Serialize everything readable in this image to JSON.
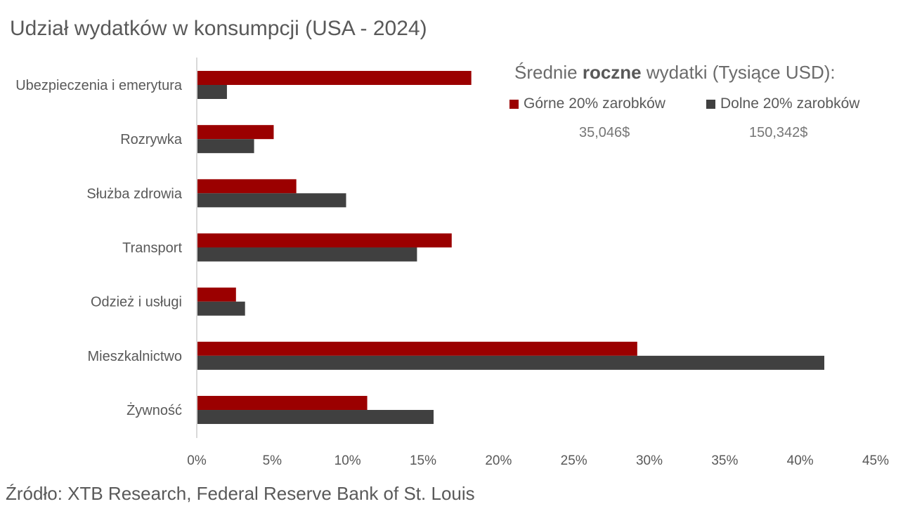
{
  "chart_data": {
    "type": "bar",
    "orientation": "horizontal",
    "title": "Udział wydatków w konsumpcji (USA - 2024)",
    "source": "Źródło: XTB Research, Federal Reserve Bank of St. Louis",
    "categories": [
      "Ubezpieczenia i emerytura",
      "Rozrywka",
      "Służba zdrowia",
      "Transport",
      "Odzież i usługi",
      "Mieszkalnictwo",
      "Żywność"
    ],
    "series": [
      {
        "name": "Górne 20% zarobków",
        "color": "#9b0000",
        "values": [
          18.2,
          5.1,
          6.6,
          16.9,
          2.6,
          29.2,
          11.3
        ]
      },
      {
        "name": "Dolne 20% zarobków",
        "color": "#404040",
        "values": [
          2.0,
          3.8,
          9.9,
          14.6,
          3.2,
          41.6,
          15.7
        ]
      }
    ],
    "xlim": [
      0,
      45
    ],
    "xticks": [
      "0%",
      "5%",
      "10%",
      "15%",
      "20%",
      "25%",
      "30%",
      "35%",
      "40%",
      "45%"
    ],
    "grid": false,
    "legend": {
      "placement": "top-right",
      "title_prefix": "Średnie ",
      "title_bold": "roczne",
      "title_suffix": " wydatki (Tysiące USD):",
      "values": [
        "35,046$",
        "150,342$"
      ]
    }
  }
}
